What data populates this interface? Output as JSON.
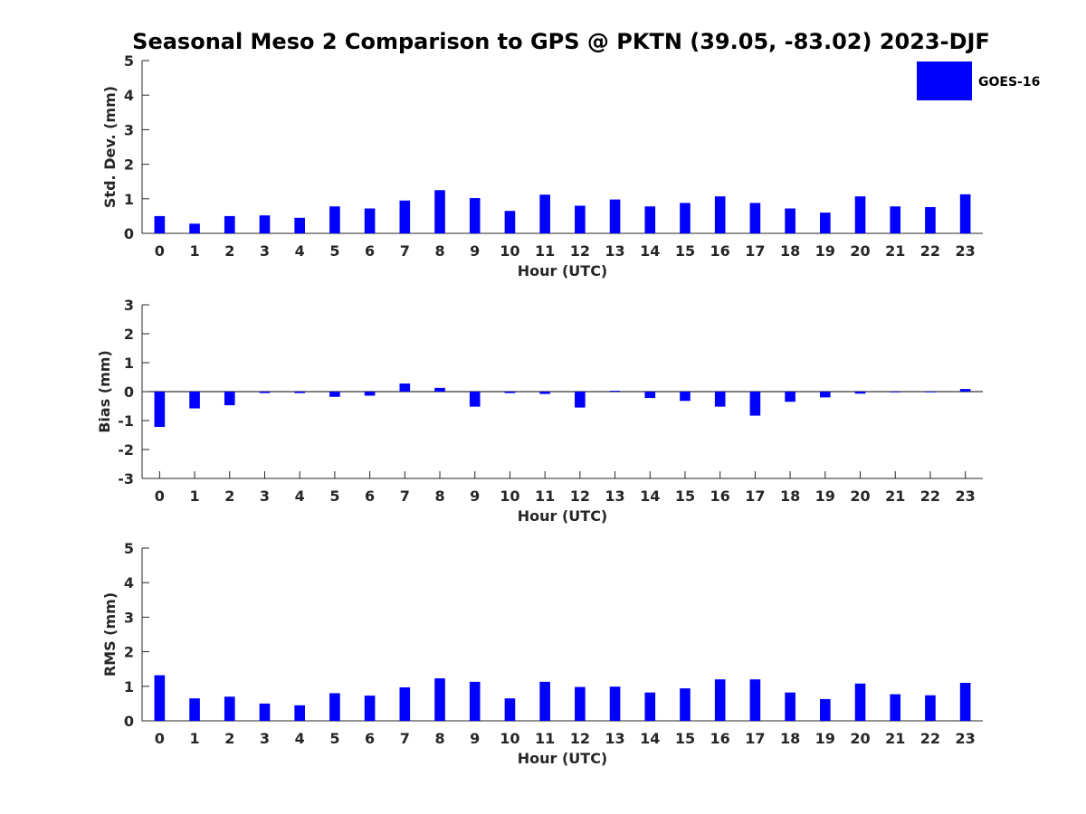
{
  "title": "Seasonal Meso 2 Comparison to GPS @ PKTN (39.05, -83.02) 2023-DJF",
  "colors": {
    "bar": "#0000ff",
    "axis": "#262626",
    "background": "#ffffff"
  },
  "chart_data": [
    {
      "type": "bar",
      "xlabel": "Hour (UTC)",
      "ylabel": "Std. Dev. (mm)",
      "ylim": [
        0,
        5
      ],
      "yticks": [
        0,
        1,
        2,
        3,
        4,
        5
      ],
      "categories": [
        "0",
        "1",
        "2",
        "3",
        "4",
        "5",
        "6",
        "7",
        "8",
        "9",
        "10",
        "11",
        "12",
        "13",
        "14",
        "15",
        "16",
        "17",
        "18",
        "19",
        "20",
        "21",
        "22",
        "23"
      ],
      "series": [
        {
          "name": "GOES-16",
          "values": [
            0.5,
            0.28,
            0.5,
            0.52,
            0.45,
            0.78,
            0.72,
            0.95,
            1.25,
            1.02,
            0.65,
            1.12,
            0.8,
            0.98,
            0.78,
            0.88,
            1.07,
            0.88,
            0.72,
            0.6,
            1.07,
            0.78,
            0.76,
            1.13
          ]
        }
      ],
      "legend": "top-right",
      "grid": false
    },
    {
      "type": "bar",
      "xlabel": "Hour (UTC)",
      "ylabel": "Bias (mm)",
      "ylim": [
        -3,
        3
      ],
      "yticks": [
        -3,
        -2,
        -1,
        0,
        1,
        2,
        3
      ],
      "categories": [
        "0",
        "1",
        "2",
        "3",
        "4",
        "5",
        "6",
        "7",
        "8",
        "9",
        "10",
        "11",
        "12",
        "13",
        "14",
        "15",
        "16",
        "17",
        "18",
        "19",
        "20",
        "21",
        "22",
        "23"
      ],
      "series": [
        {
          "name": "GOES-16",
          "values": [
            -1.22,
            -0.58,
            -0.47,
            -0.05,
            -0.05,
            -0.18,
            -0.14,
            0.28,
            0.13,
            -0.52,
            -0.05,
            -0.08,
            -0.55,
            0.03,
            -0.22,
            -0.32,
            -0.52,
            -0.83,
            -0.35,
            -0.2,
            -0.07,
            -0.01,
            -0.01,
            0.09
          ]
        }
      ],
      "grid": false
    },
    {
      "type": "bar",
      "xlabel": "Hour (UTC)",
      "ylabel": "RMS (mm)",
      "ylim": [
        0,
        5
      ],
      "yticks": [
        0,
        1,
        2,
        3,
        4,
        5
      ],
      "categories": [
        "0",
        "1",
        "2",
        "3",
        "4",
        "5",
        "6",
        "7",
        "8",
        "9",
        "10",
        "11",
        "12",
        "13",
        "14",
        "15",
        "16",
        "17",
        "18",
        "19",
        "20",
        "21",
        "22",
        "23"
      ],
      "series": [
        {
          "name": "GOES-16",
          "values": [
            1.32,
            0.65,
            0.7,
            0.5,
            0.45,
            0.8,
            0.73,
            0.97,
            1.23,
            1.13,
            0.65,
            1.13,
            0.98,
            0.99,
            0.82,
            0.94,
            1.2,
            1.2,
            0.82,
            0.63,
            1.08,
            0.77,
            0.74,
            1.1
          ]
        }
      ],
      "grid": false
    }
  ]
}
